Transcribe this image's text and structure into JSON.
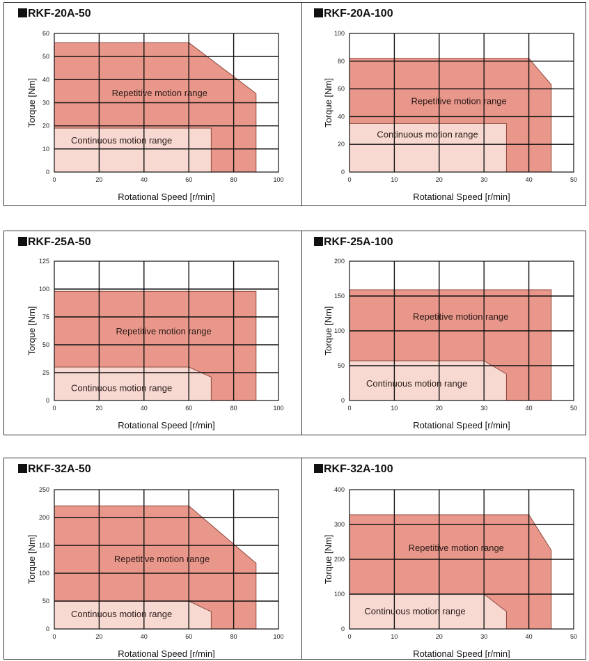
{
  "colors": {
    "repetitive": "#e9978a",
    "continuous": "#f8d9d1",
    "outline": "#8c4a3e",
    "grid": "#111111",
    "frame": "#333333"
  },
  "chart_data": [
    {
      "type": "area",
      "title": "RKF-20A-50",
      "xlabel": "Rotational Speed [r/min]",
      "ylabel": "Torque [Nm]",
      "xlim": [
        0,
        100
      ],
      "ylim": [
        0,
        60
      ],
      "xticks": [
        0,
        20,
        40,
        60,
        80,
        100
      ],
      "yticks": [
        0,
        10,
        20,
        30,
        40,
        50,
        60
      ],
      "grid": true,
      "series": [
        {
          "name": "Repetitive motion range",
          "points": [
            [
              0,
              0
            ],
            [
              0,
              56
            ],
            [
              60,
              56
            ],
            [
              90,
              34
            ],
            [
              90,
              0
            ]
          ]
        },
        {
          "name": "Continuous motion range",
          "points": [
            [
              0,
              0
            ],
            [
              0,
              19
            ],
            [
              70,
              19
            ],
            [
              70,
              0
            ]
          ]
        }
      ]
    },
    {
      "type": "area",
      "title": "RKF-20A-100",
      "xlabel": "Rotational Speed [r/min]",
      "ylabel": "Torque [Nm]",
      "xlim": [
        0,
        50
      ],
      "ylim": [
        0,
        100
      ],
      "xticks": [
        0,
        10,
        20,
        30,
        40,
        50
      ],
      "yticks": [
        0,
        20,
        40,
        60,
        80,
        100
      ],
      "grid": true,
      "series": [
        {
          "name": "Repetitive motion range",
          "points": [
            [
              0,
              0
            ],
            [
              0,
              82
            ],
            [
              40,
              82
            ],
            [
              45,
              63
            ],
            [
              45,
              0
            ]
          ]
        },
        {
          "name": "Continuous motion range",
          "points": [
            [
              0,
              0
            ],
            [
              0,
              35
            ],
            [
              35,
              35
            ],
            [
              35,
              0
            ]
          ]
        }
      ]
    },
    {
      "type": "area",
      "title": "RKF-25A-50",
      "xlabel": "Rotational Speed [r/min]",
      "ylabel": "Torque [Nm]",
      "xlim": [
        0,
        100
      ],
      "ylim": [
        0,
        125
      ],
      "xticks": [
        0,
        20,
        40,
        60,
        80,
        100
      ],
      "yticks": [
        0,
        25,
        50,
        75,
        100,
        125
      ],
      "grid": true,
      "series": [
        {
          "name": "Repetitive motion range",
          "points": [
            [
              0,
              0
            ],
            [
              0,
              98
            ],
            [
              90,
              98
            ],
            [
              90,
              0
            ]
          ]
        },
        {
          "name": "Continuous motion range",
          "points": [
            [
              0,
              0
            ],
            [
              0,
              30
            ],
            [
              60,
              30
            ],
            [
              70,
              21
            ],
            [
              70,
              0
            ]
          ]
        }
      ]
    },
    {
      "type": "area",
      "title": "RKF-25A-100",
      "xlabel": "Rotational Speed [r/min]",
      "ylabel": "Torque [Nm]",
      "xlim": [
        0,
        50
      ],
      "ylim": [
        0,
        200
      ],
      "xticks": [
        0,
        10,
        20,
        30,
        40,
        50
      ],
      "yticks": [
        0,
        50,
        100,
        150,
        200
      ],
      "grid": true,
      "series": [
        {
          "name": "Repetitive motion range",
          "points": [
            [
              0,
              0
            ],
            [
              0,
              159
            ],
            [
              45,
              159
            ],
            [
              45,
              0
            ]
          ]
        },
        {
          "name": "Continuous motion range",
          "points": [
            [
              0,
              0
            ],
            [
              0,
              57
            ],
            [
              30,
              57
            ],
            [
              35,
              38
            ],
            [
              35,
              0
            ]
          ]
        }
      ]
    },
    {
      "type": "area",
      "title": "RKF-32A-50",
      "xlabel": "Rotational Speed [r/min]",
      "ylabel": "Torque [Nm]",
      "xlim": [
        0,
        100
      ],
      "ylim": [
        0,
        250
      ],
      "xticks": [
        0,
        20,
        40,
        60,
        80,
        100
      ],
      "yticks": [
        0,
        50,
        100,
        150,
        200,
        250
      ],
      "grid": true,
      "series": [
        {
          "name": "Repetitive motion range",
          "points": [
            [
              0,
              0
            ],
            [
              0,
              221
            ],
            [
              60,
              221
            ],
            [
              90,
              118
            ],
            [
              90,
              0
            ]
          ]
        },
        {
          "name": "Continuous motion range",
          "points": [
            [
              0,
              0
            ],
            [
              0,
              50
            ],
            [
              60,
              50
            ],
            [
              70,
              31
            ],
            [
              70,
              0
            ]
          ]
        }
      ]
    },
    {
      "type": "area",
      "title": "RKF-32A-100",
      "xlabel": "Rotational Speed [r/min]",
      "ylabel": "Torque [Nm]",
      "xlim": [
        0,
        50
      ],
      "ylim": [
        0,
        400
      ],
      "xticks": [
        0,
        10,
        20,
        30,
        40,
        50
      ],
      "yticks": [
        0,
        100,
        200,
        300,
        400
      ],
      "grid": true,
      "series": [
        {
          "name": "Repetitive motion range",
          "points": [
            [
              0,
              0
            ],
            [
              0,
              328
            ],
            [
              40,
              328
            ],
            [
              45,
              226
            ],
            [
              45,
              0
            ]
          ]
        },
        {
          "name": "Continuous motion range",
          "points": [
            [
              0,
              0
            ],
            [
              0,
              100
            ],
            [
              30,
              100
            ],
            [
              35,
              50
            ],
            [
              35,
              0
            ]
          ]
        }
      ]
    }
  ]
}
